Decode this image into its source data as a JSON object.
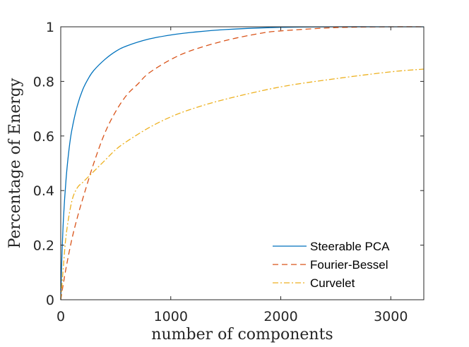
{
  "chart_data": {
    "type": "line",
    "title": "",
    "xlabel": "number of components",
    "ylabel": "Percentage of Energy",
    "xlim": [
      0,
      3300
    ],
    "ylim": [
      0,
      1
    ],
    "xticks": [
      0,
      1000,
      2000,
      3000
    ],
    "xtick_labels": [
      "0",
      "1000",
      "2000",
      "3000"
    ],
    "yticks": [
      0,
      0.2,
      0.4,
      0.6,
      0.8,
      1
    ],
    "ytick_labels": [
      "0",
      "0.2",
      "0.4",
      "0.6",
      "0.8",
      "1"
    ],
    "grid": false,
    "legend_position": "bottom-right",
    "series": [
      {
        "name": "Steerable PCA",
        "color": "#0072BD",
        "dash": "solid",
        "x": [
          0,
          10,
          25,
          50,
          75,
          100,
          150,
          200,
          250,
          300,
          400,
          500,
          600,
          800,
          1000,
          1200,
          1500,
          2000,
          2500,
          3000,
          3300
        ],
        "y": [
          0,
          0.15,
          0.3,
          0.45,
          0.55,
          0.62,
          0.71,
          0.77,
          0.81,
          0.84,
          0.88,
          0.91,
          0.93,
          0.955,
          0.97,
          0.98,
          0.99,
          0.998,
          1.0,
          1.0,
          1.0
        ]
      },
      {
        "name": "Fourier-Bessel",
        "color": "#D95319",
        "dash": "dashed",
        "x": [
          0,
          20,
          50,
          100,
          150,
          200,
          300,
          400,
          500,
          600,
          700,
          800,
          1000,
          1200,
          1500,
          1800,
          2000,
          2500,
          3000,
          3300
        ],
        "y": [
          0,
          0.05,
          0.12,
          0.22,
          0.3,
          0.37,
          0.5,
          0.61,
          0.69,
          0.75,
          0.79,
          0.83,
          0.88,
          0.915,
          0.95,
          0.975,
          0.985,
          0.997,
          1.0,
          1.0
        ]
      },
      {
        "name": "Curvelet",
        "color": "#EDB120",
        "dash": "dashdot",
        "x": [
          0,
          20,
          50,
          100,
          150,
          200,
          250,
          300,
          400,
          500,
          600,
          800,
          1000,
          1200,
          1500,
          2000,
          2500,
          3000,
          3300
        ],
        "y": [
          0,
          0.1,
          0.24,
          0.36,
          0.41,
          0.43,
          0.45,
          0.47,
          0.51,
          0.55,
          0.58,
          0.63,
          0.67,
          0.7,
          0.735,
          0.78,
          0.81,
          0.835,
          0.845
        ]
      }
    ]
  }
}
